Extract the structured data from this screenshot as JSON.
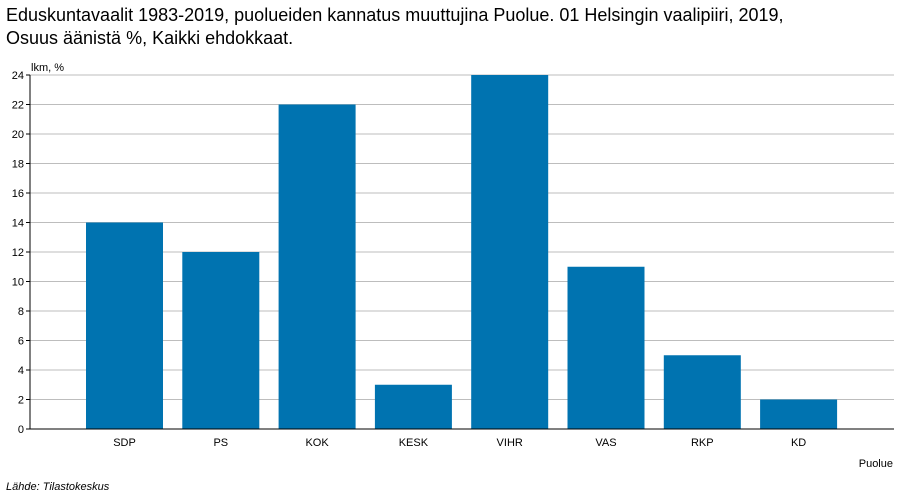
{
  "chart_data": {
    "type": "bar",
    "title_line1": "Eduskuntavaalit 1983-2019, puolueiden kannatus muuttujina Puolue. 01 Helsingin vaalipiiri, 2019,",
    "title_line2": "Osuus äänistä %, Kaikki ehdokkaat.",
    "ylabel": "lkm, %",
    "xlabel": "Puolue",
    "categories": [
      "SDP",
      "PS",
      "KOK",
      "KESK",
      "VIHR",
      "VAS",
      "RKP",
      "KD"
    ],
    "values": [
      14,
      12,
      22,
      3,
      24,
      11,
      5,
      2
    ],
    "ylim": [
      0,
      24
    ],
    "yticks": [
      0,
      2,
      4,
      6,
      8,
      10,
      12,
      14,
      16,
      18,
      20,
      22,
      24
    ],
    "grid": true,
    "bar_color": "#0073b0",
    "grid_color": "#bdbdbd",
    "axis_color": "#000000"
  },
  "source": "Lähde: Tilastokeskus"
}
